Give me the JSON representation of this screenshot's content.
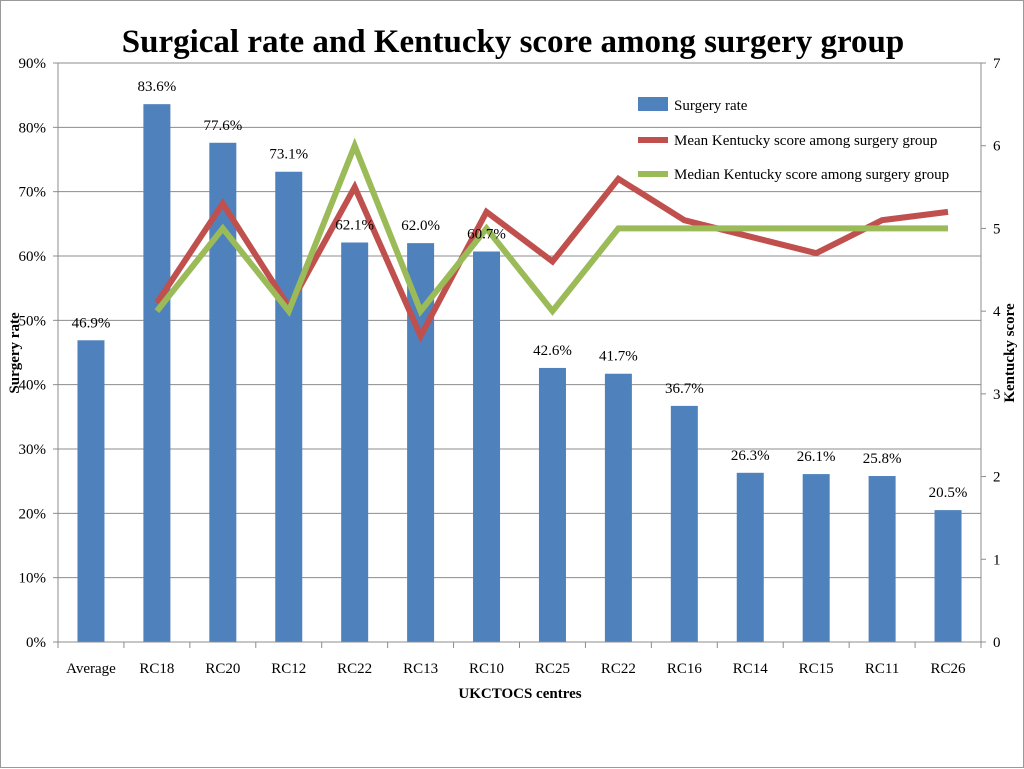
{
  "chart_data": {
    "type": "bar",
    "title": "Surgical rate and Kentucky score among surgery group",
    "xlabel": "UKCTOCS centres",
    "ylabel": "Surgery rate",
    "y2label": "Kentucky score",
    "categories": [
      "Average",
      "RC18",
      "RC20",
      "RC12",
      "RC22",
      "RC13",
      "RC10",
      "RC25",
      "RC22",
      "RC16",
      "RC14",
      "RC15",
      "RC11",
      "RC26"
    ],
    "ylim": [
      0,
      90
    ],
    "yticks": [
      "0%",
      "10%",
      "20%",
      "30%",
      "40%",
      "50%",
      "60%",
      "70%",
      "80%",
      "90%"
    ],
    "y2lim": [
      0,
      7
    ],
    "y2ticks": [
      "0",
      "1",
      "2",
      "3",
      "4",
      "5",
      "6",
      "7"
    ],
    "grid": true,
    "legend_position": "top-right",
    "series": [
      {
        "name": "Surgery rate",
        "kind": "bar",
        "axis": "left",
        "color": "#4f81bd",
        "values": [
          46.9,
          83.6,
          77.6,
          73.1,
          62.1,
          62.0,
          60.7,
          42.6,
          41.7,
          36.7,
          26.3,
          26.1,
          25.8,
          20.5
        ],
        "labels": [
          "46.9%",
          "83.6%",
          "77.6%",
          "73.1%",
          "62.1%",
          "62.0%",
          "60.7%",
          "42.6%",
          "41.7%",
          "36.7%",
          "26.3%",
          "26.1%",
          "25.8%",
          "20.5%"
        ]
      },
      {
        "name": "Mean Kentucky score among surgery group",
        "kind": "line",
        "axis": "right",
        "color": "#c0504d",
        "values": [
          null,
          4.1,
          5.3,
          4.05,
          5.5,
          3.7,
          5.2,
          4.6,
          5.6,
          5.1,
          4.9,
          4.7,
          5.1,
          5.2
        ]
      },
      {
        "name": "Median Kentucky score among surgery group",
        "kind": "line",
        "axis": "right",
        "color": "#9bbb59",
        "values": [
          null,
          4,
          5,
          4,
          6,
          4,
          5,
          4,
          5,
          5,
          5,
          5,
          5,
          5
        ]
      }
    ]
  }
}
